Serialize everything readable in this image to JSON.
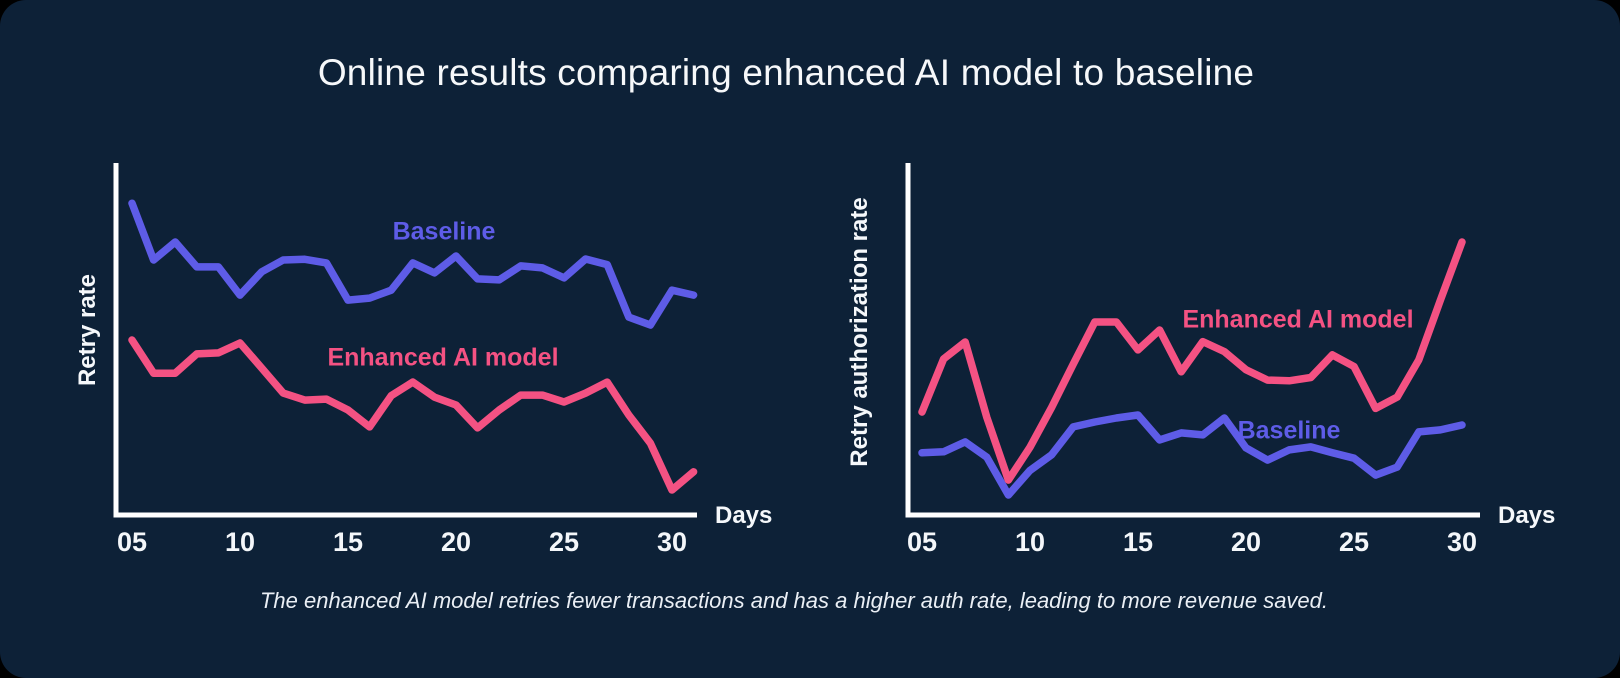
{
  "title": "Online results comparing enhanced AI model to baseline",
  "caption": "The enhanced AI model retries fewer transactions and has a higher auth rate, leading to more revenue saved.",
  "colors": {
    "card_background": "#0D2137",
    "page_background": "#000000",
    "baseline": "#5E5CE7",
    "enhanced": "#F45283",
    "axis": "#FFFFFF",
    "text": "#F5F8FB"
  },
  "chart_data": [
    {
      "type": "line",
      "ylabel": "Retry rate",
      "xlabel": "Days",
      "grid": false,
      "legend_position": "inline-labels",
      "ylim": [
        0,
        100
      ],
      "x_tick_days": [
        5,
        10,
        15,
        20,
        25,
        30
      ],
      "x_tick_labels": [
        "05",
        "10",
        "15",
        "20",
        "25",
        "30"
      ],
      "days": [
        5,
        6,
        7,
        8,
        9,
        10,
        11,
        12,
        13,
        14,
        15,
        16,
        17,
        18,
        19,
        20,
        21,
        22,
        23,
        24,
        25,
        26,
        27,
        28,
        29,
        30,
        31
      ],
      "series": [
        {
          "name": "Baseline",
          "color": "#5E5CE7",
          "values": [
            88.5,
            71.4,
            76.8,
            69.3,
            69.3,
            60.8,
            67.8,
            71.4,
            71.6,
            70.5,
            59.3,
            59.9,
            62.3,
            70.5,
            67.5,
            72.6,
            65.7,
            65.4,
            69.6,
            69.0,
            66.0,
            71.7,
            70.0,
            54.2,
            51.8,
            62.3,
            60.8
          ]
        },
        {
          "name": "Enhanced AI model",
          "color": "#F45283",
          "values": [
            47.3,
            37.3,
            37.3,
            43.1,
            43.4,
            46.4,
            38.9,
            31.3,
            29.2,
            29.5,
            26.2,
            21.1,
            30.5,
            34.6,
            30.1,
            27.7,
            20.8,
            26.2,
            30.7,
            30.7,
            28.6,
            31.3,
            34.6,
            24.7,
            16.2,
            2.1,
            7.6
          ]
        }
      ]
    },
    {
      "type": "line",
      "ylabel": "Retry authorization rate",
      "xlabel": "Days",
      "grid": false,
      "legend_position": "inline-labels",
      "ylim": [
        0,
        100
      ],
      "x_tick_days": [
        5,
        10,
        15,
        20,
        25,
        30
      ],
      "x_tick_labels": [
        "05",
        "10",
        "15",
        "20",
        "25",
        "30"
      ],
      "days": [
        5,
        6,
        7,
        8,
        9,
        10,
        11,
        12,
        13,
        14,
        15,
        16,
        17,
        18,
        19,
        20,
        21,
        22,
        23,
        24,
        25,
        26,
        27,
        28,
        29,
        30
      ],
      "series": [
        {
          "name": "Baseline",
          "color": "#5E5CE7",
          "values": [
            13.3,
            13.6,
            16.6,
            12.0,
            0.6,
            8.0,
            12.7,
            21.1,
            22.6,
            23.8,
            24.7,
            17.2,
            19.3,
            18.7,
            23.8,
            14.8,
            11.1,
            14.2,
            15.1,
            13.3,
            11.7,
            6.6,
            9.0,
            19.6,
            20.2,
            21.7
          ]
        },
        {
          "name": "Enhanced AI model",
          "color": "#F45283",
          "values": [
            25.6,
            41.6,
            46.7,
            24.0,
            5.1,
            15.0,
            27.0,
            40.0,
            52.7,
            52.7,
            44.3,
            50.3,
            37.7,
            46.8,
            43.8,
            38.3,
            35.2,
            35.0,
            36.0,
            42.8,
            39.3,
            26.7,
            30.1,
            41.3,
            59.3,
            76.8
          ]
        }
      ]
    }
  ]
}
